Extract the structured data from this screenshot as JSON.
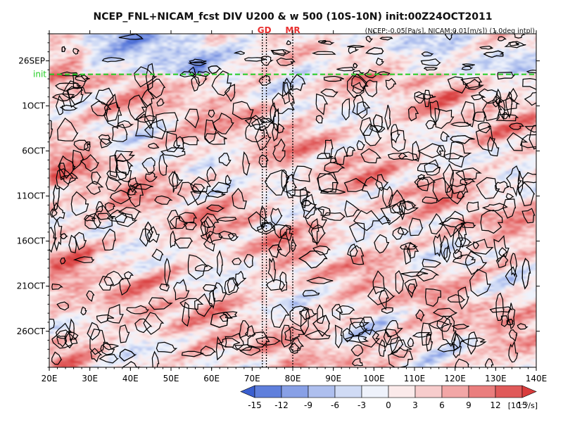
{
  "chart_data": {
    "type": "heatmap",
    "title": "NCEP_FNL+NICAM_fcst DIV U200 & w 500 (10S-10N) init:00Z24OCT2011",
    "subtitle": "(NCEP:-0.05[Pa/s], NICAM:0.01[m/s]) (1.0deg intpl)",
    "x_axis": {
      "label": "",
      "ticks": [
        "20E",
        "30E",
        "40E",
        "50E",
        "60E",
        "70E",
        "80E",
        "90E",
        "100E",
        "110E",
        "120E",
        "130E",
        "140E"
      ],
      "range_deg": [
        20,
        140
      ]
    },
    "y_axis": {
      "label": "",
      "ticks": [
        "26SEP",
        "1OCT",
        "6OCT",
        "11OCT",
        "16OCT",
        "21OCT",
        "26OCT"
      ],
      "top_day": 23,
      "bottom_day": 60
    },
    "markers": [
      {
        "label": "GD",
        "lon": [
          72.5,
          73.5
        ],
        "color": "#e83030"
      },
      {
        "label": "MR",
        "lon": [
          80
        ],
        "color": "#e83030"
      }
    ],
    "init_line": {
      "label": "init",
      "day": 27.5,
      "color": "#22cc22"
    },
    "colorbar": {
      "ticks": [
        "-15",
        "-12",
        "-9",
        "-6",
        "-3",
        "0",
        "3",
        "6",
        "9",
        "12",
        "15"
      ],
      "unit": "[10⁻⁶/s]",
      "colors": [
        "#3a5fd0",
        "#5f7fdc",
        "#88a0e6",
        "#aebfee",
        "#d0dbf5",
        "#eef2fb",
        "#fbeaea",
        "#f7cccc",
        "#f2a6a6",
        "#ea7e7e",
        "#e05a5a",
        "#d93c3c"
      ]
    },
    "contour_legend": "w 500 contours (black)"
  }
}
